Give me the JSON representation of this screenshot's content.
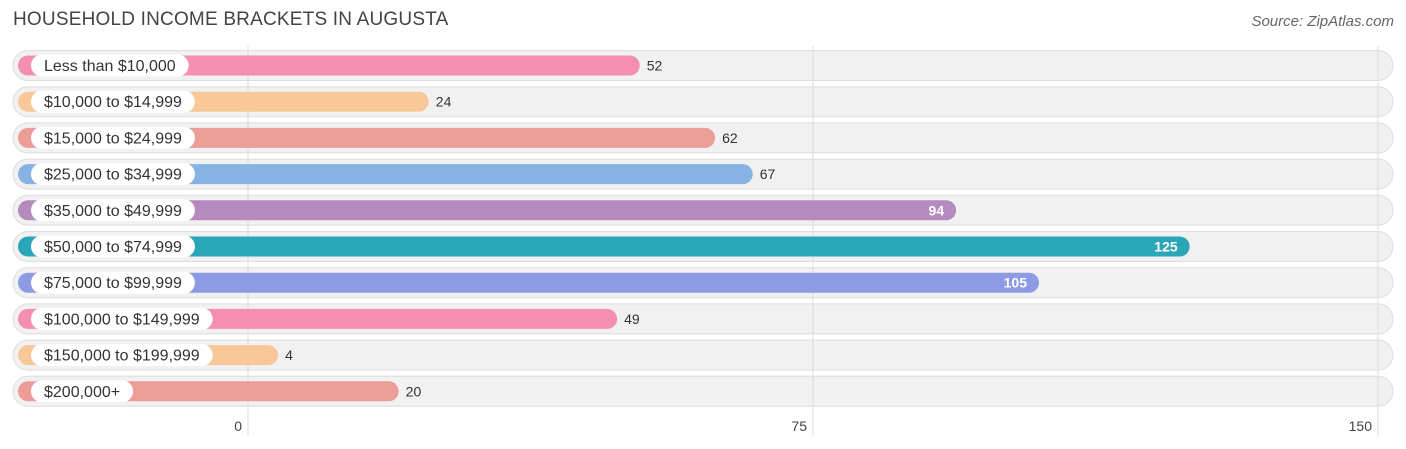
{
  "header": {
    "title": "HOUSEHOLD INCOME BRACKETS IN AUGUSTA",
    "source": "Source: ZipAtlas.com"
  },
  "chart_data": {
    "type": "bar",
    "orientation": "horizontal",
    "title": "HOUSEHOLD INCOME BRACKETS IN AUGUSTA",
    "xlabel": "",
    "ylabel": "",
    "xlim": [
      0,
      150
    ],
    "ticks": [
      0,
      75,
      150
    ],
    "tick_labels": [
      "0",
      "75",
      "150"
    ],
    "grid": true,
    "categories": [
      "Less than $10,000",
      "$10,000 to $14,999",
      "$15,000 to $24,999",
      "$25,000 to $34,999",
      "$35,000 to $49,999",
      "$50,000 to $74,999",
      "$75,000 to $99,999",
      "$100,000 to $149,999",
      "$150,000 to $199,999",
      "$200,000+"
    ],
    "values": [
      52,
      24,
      62,
      67,
      94,
      125,
      105,
      49,
      4,
      20
    ],
    "value_labels": [
      "52",
      "24",
      "62",
      "67",
      "94",
      "125",
      "105",
      "49",
      "4",
      "20"
    ],
    "colors": [
      "#f48fb1",
      "#f9c899",
      "#ec9d97",
      "#86b3e3",
      "#b58bbf",
      "#2ba5b8",
      "#8c9be3",
      "#f48fb1",
      "#f9c899",
      "#ec9d97"
    ],
    "labels_inside": [
      false,
      false,
      false,
      false,
      true,
      true,
      true,
      false,
      false,
      false
    ]
  }
}
